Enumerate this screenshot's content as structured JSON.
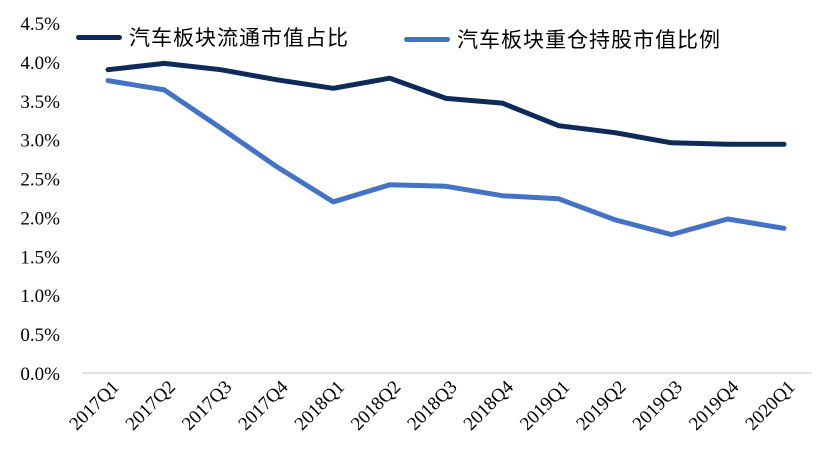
{
  "chart_data": {
    "type": "line",
    "categories": [
      "2017Q1",
      "2017Q2",
      "2017Q3",
      "2017Q4",
      "2018Q1",
      "2018Q2",
      "2018Q3",
      "2018Q4",
      "2019Q1",
      "2019Q2",
      "2019Q3",
      "2019Q4",
      "2020Q1"
    ],
    "series": [
      {
        "name": "汽车板块流通市值占比",
        "color": "#0e2a5a",
        "values": [
          3.9,
          3.98,
          3.9,
          3.77,
          3.66,
          3.79,
          3.53,
          3.47,
          3.18,
          3.09,
          2.96,
          2.94,
          2.94
        ]
      },
      {
        "name": "汽车板块重仓持股市值比例",
        "color": "#4472c4",
        "values": [
          3.76,
          3.64,
          3.15,
          2.65,
          2.2,
          2.42,
          2.4,
          2.28,
          2.24,
          1.97,
          1.78,
          1.98,
          1.86
        ]
      }
    ],
    "title": "",
    "xlabel": "",
    "ylabel": "",
    "ylim": [
      0.0,
      4.5
    ],
    "ytick_step": 0.5,
    "ytick_labels": [
      "0.0%",
      "0.5%",
      "1.0%",
      "1.5%",
      "2.0%",
      "2.5%",
      "3.0%",
      "3.5%",
      "4.0%",
      "4.5%"
    ],
    "grid": false,
    "legend_position": "top",
    "axis_line_color": "#d9d9d9",
    "text_color": "#000000"
  }
}
